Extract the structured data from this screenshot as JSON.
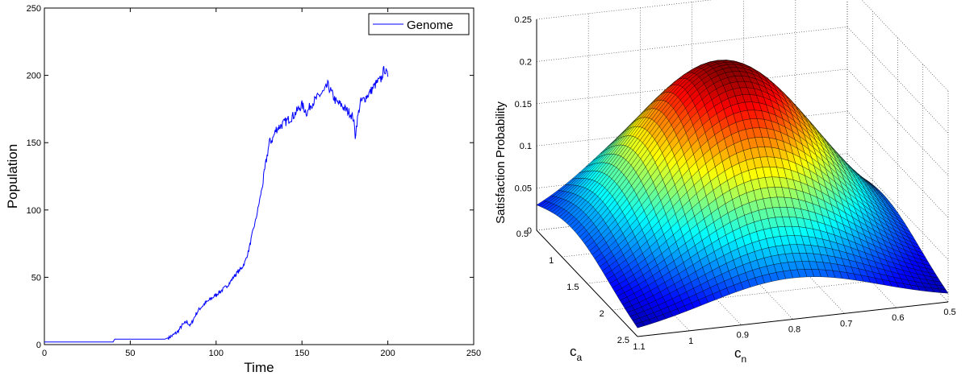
{
  "chart_data": [
    {
      "type": "line",
      "xlabel": "Time",
      "ylabel": "Population",
      "xlim": [
        0,
        250
      ],
      "ylim": [
        0,
        250
      ],
      "xticks": [
        "0",
        "50",
        "100",
        "150",
        "200",
        "250"
      ],
      "yticks": [
        "0",
        "50",
        "100",
        "150",
        "200",
        "250"
      ],
      "grid": false,
      "legend": {
        "position": "top-right",
        "entries": [
          "Genome"
        ]
      },
      "series": [
        {
          "name": "Genome",
          "color": "#0000ff",
          "x": [
            0,
            10,
            20,
            30,
            40,
            41,
            50,
            60,
            70,
            72,
            75,
            78,
            80,
            83,
            85,
            88,
            90,
            93,
            95,
            98,
            100,
            103,
            105,
            108,
            110,
            112,
            115,
            117,
            119,
            121,
            123,
            125,
            127,
            129,
            131,
            133,
            135,
            138,
            140,
            143,
            145,
            148,
            150,
            153,
            155,
            158,
            160,
            163,
            165,
            168,
            170,
            173,
            175,
            178,
            180,
            181,
            182,
            184,
            186,
            188,
            190,
            192,
            194,
            196,
            198,
            200
          ],
          "y": [
            2,
            2,
            2,
            2,
            2,
            4,
            4,
            4,
            4,
            5,
            7,
            10,
            14,
            17,
            14,
            22,
            26,
            30,
            32,
            35,
            37,
            40,
            42,
            46,
            50,
            53,
            57,
            62,
            70,
            82,
            92,
            105,
            118,
            135,
            150,
            153,
            160,
            163,
            165,
            168,
            170,
            175,
            178,
            172,
            178,
            182,
            185,
            188,
            193,
            185,
            180,
            178,
            175,
            172,
            168,
            155,
            165,
            180,
            182,
            185,
            188,
            192,
            195,
            197,
            205,
            199
          ]
        }
      ]
    },
    {
      "type": "surface",
      "zlabel": "Satisfaction Probability",
      "xlabel": "c_n",
      "ylabel": "c_a",
      "x_axis": {
        "label_base": "c",
        "label_sub": "n",
        "range": [
          0.5,
          1.1
        ],
        "ticks": [
          "1.1",
          "1",
          "0.9",
          "0.8",
          "0.7",
          "0.6",
          "0.5"
        ]
      },
      "y_axis": {
        "label_base": "c",
        "label_sub": "a",
        "range": [
          0.5,
          2.5
        ],
        "ticks": [
          "0.5",
          "1",
          "1.5",
          "2",
          "2.5"
        ]
      },
      "z_axis": {
        "range": [
          0,
          0.25
        ],
        "ticks": [
          "0",
          "0.05",
          "0.1",
          "0.15",
          "0.2",
          "0.25"
        ]
      },
      "grid": true,
      "colormap": "jet",
      "peak": {
        "c_n": 0.8,
        "c_a": 1.2,
        "value": 0.22
      }
    }
  ]
}
